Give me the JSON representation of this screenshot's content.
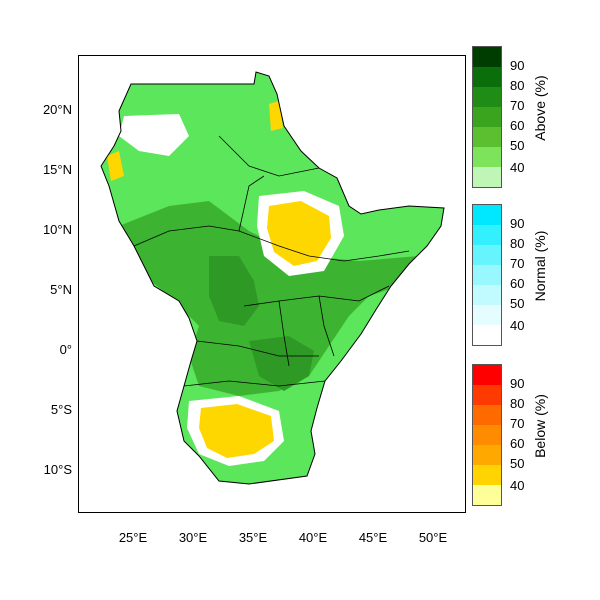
{
  "map": {
    "lat_labels": [
      "20°N",
      "15°N",
      "10°N",
      "5°N",
      "0°",
      "5°S",
      "10°S"
    ],
    "lon_labels": [
      "25°E",
      "30°E",
      "35°E",
      "40°E",
      "45°E",
      "50°E"
    ],
    "lon_range": [
      20.5,
      53.5
    ],
    "lat_range": [
      -13.5,
      24.5
    ]
  },
  "legend": {
    "above": {
      "title": "Above (%)",
      "ticks": [
        "90",
        "80",
        "70",
        "60",
        "50",
        "40"
      ],
      "colors": [
        "#003d00",
        "#0a6e0a",
        "#1f8c15",
        "#3aa41f",
        "#5cbf2f",
        "#7de35a",
        "#bff5b5"
      ]
    },
    "normal": {
      "title": "Normal (%)",
      "ticks": [
        "90",
        "80",
        "70",
        "60",
        "50",
        "40"
      ],
      "colors": [
        "#00e8ff",
        "#33f0ff",
        "#66f4ff",
        "#99f7ff",
        "#c2fbff",
        "#e6fdff",
        "#ffffff"
      ]
    },
    "below": {
      "title": "Below (%)",
      "ticks": [
        "90",
        "80",
        "70",
        "60",
        "50",
        "40"
      ],
      "colors": [
        "#ff0000",
        "#ff3a00",
        "#ff6a00",
        "#ff8c00",
        "#ffa800",
        "#ffd400",
        "#ffff99"
      ]
    }
  },
  "colors": {
    "above_40": "#5ce65c",
    "above_50": "#3cb431",
    "above_60": "#2e9a25",
    "below_40": "#ffd700",
    "border": "#000000"
  }
}
